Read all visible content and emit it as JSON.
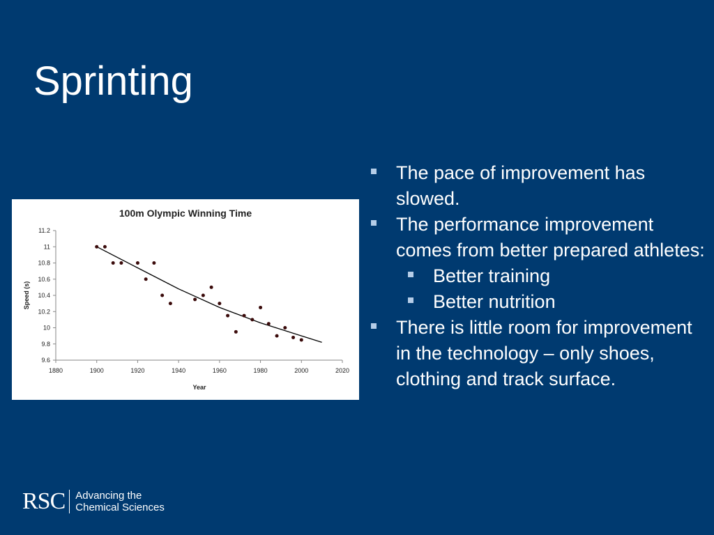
{
  "slide": {
    "title": "Sprinting",
    "bullets": [
      {
        "level": 1,
        "text": "The pace of improvement has slowed."
      },
      {
        "level": 1,
        "text": "The performance improvement comes from better prepared athletes:"
      },
      {
        "level": 2,
        "text": "Better training"
      },
      {
        "level": 2,
        "text": "Better nutrition"
      },
      {
        "level": 1,
        "text": "There is little room for improvement in the technology – only shoes, clothing and track surface."
      }
    ],
    "logo": {
      "mark": "RSC",
      "tagline_line1": "Advancing the",
      "tagline_line2": "Chemical Sciences"
    }
  },
  "chart_data": {
    "type": "scatter",
    "title": "100m Olympic Winning Time",
    "xlabel": "Year",
    "ylabel": "Speed (s)",
    "xlim": [
      1880,
      2020
    ],
    "ylim": [
      9.6,
      11.2
    ],
    "xticks": [
      "1880",
      "1900",
      "1920",
      "1940",
      "1960",
      "1980",
      "2000",
      "2020"
    ],
    "yticks": [
      "9.6",
      "9.8",
      "10",
      "10.2",
      "10.4",
      "10.6",
      "10.8",
      "11",
      "11.2"
    ],
    "grid": false,
    "points": [
      {
        "x": 1900,
        "y": 11.0
      },
      {
        "x": 1904,
        "y": 11.0
      },
      {
        "x": 1908,
        "y": 10.8
      },
      {
        "x": 1912,
        "y": 10.8
      },
      {
        "x": 1920,
        "y": 10.8
      },
      {
        "x": 1924,
        "y": 10.6
      },
      {
        "x": 1928,
        "y": 10.8
      },
      {
        "x": 1932,
        "y": 10.4
      },
      {
        "x": 1936,
        "y": 10.3
      },
      {
        "x": 1948,
        "y": 10.35
      },
      {
        "x": 1952,
        "y": 10.4
      },
      {
        "x": 1956,
        "y": 10.5
      },
      {
        "x": 1960,
        "y": 10.3
      },
      {
        "x": 1964,
        "y": 10.15
      },
      {
        "x": 1968,
        "y": 9.95
      },
      {
        "x": 1972,
        "y": 10.15
      },
      {
        "x": 1976,
        "y": 10.1
      },
      {
        "x": 1980,
        "y": 10.25
      },
      {
        "x": 1984,
        "y": 10.05
      },
      {
        "x": 1988,
        "y": 9.9
      },
      {
        "x": 1992,
        "y": 10.0
      },
      {
        "x": 1996,
        "y": 9.88
      },
      {
        "x": 2000,
        "y": 9.85
      }
    ],
    "trendline": [
      {
        "x": 1900,
        "y": 11.0
      },
      {
        "x": 1920,
        "y": 10.74
      },
      {
        "x": 1940,
        "y": 10.48
      },
      {
        "x": 1960,
        "y": 10.25
      },
      {
        "x": 1980,
        "y": 10.06
      },
      {
        "x": 2000,
        "y": 9.9
      },
      {
        "x": 2010,
        "y": 9.82
      }
    ],
    "colors": {
      "points": "#3a0a0a",
      "line": "#000000",
      "axis": "#868686"
    }
  }
}
